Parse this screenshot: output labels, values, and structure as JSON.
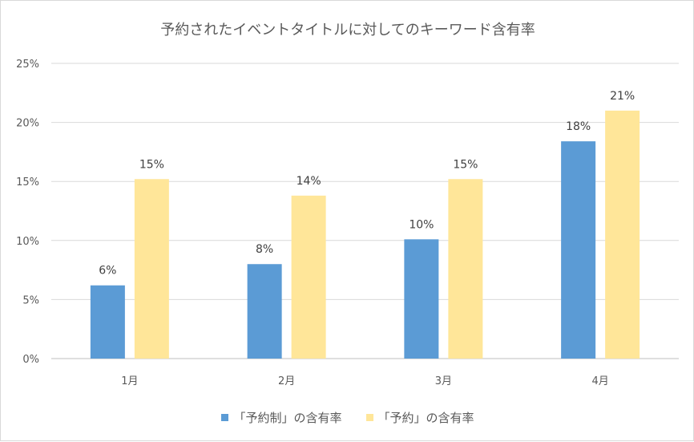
{
  "chart_data": {
    "type": "bar",
    "title": "予約されたイベントタイトルに対してのキーワード含有率",
    "categories": [
      "1月",
      "2月",
      "3月",
      "4月"
    ],
    "series": [
      {
        "name": "「予約制」の含有率",
        "values": [
          0.062,
          0.08,
          0.101,
          0.184
        ],
        "labels": [
          "6%",
          "8%",
          "10%",
          "18%"
        ],
        "color": "#5b9bd5"
      },
      {
        "name": "「予約」の含有率",
        "values": [
          0.152,
          0.138,
          0.152,
          0.21
        ],
        "labels": [
          "15%",
          "14%",
          "15%",
          "21%"
        ],
        "color": "#ffe699"
      }
    ],
    "ylim": [
      0,
      0.25
    ],
    "yticks": [
      0,
      0.05,
      0.1,
      0.15,
      0.2,
      0.25
    ],
    "ytick_labels": [
      "0%",
      "5%",
      "10%",
      "15%",
      "20%",
      "25%"
    ],
    "grid": true,
    "legend": "bottom"
  }
}
